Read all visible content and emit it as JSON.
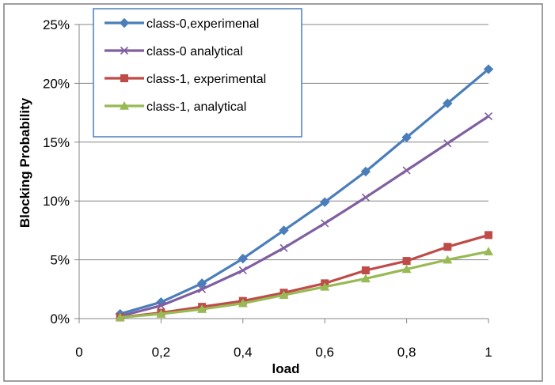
{
  "chart_data": {
    "type": "line",
    "title": "",
    "xlabel": "load",
    "ylabel": "Blocking Probability",
    "xlim": [
      0,
      1
    ],
    "ylim": [
      0,
      0.25
    ],
    "x_ticks": [
      0,
      0.2,
      0.4,
      0.6,
      0.8,
      1
    ],
    "x_tick_labels": [
      "0",
      "0,2",
      "0,4",
      "0,6",
      "0,8",
      "1"
    ],
    "y_ticks": [
      0,
      0.05,
      0.1,
      0.15,
      0.2,
      0.25
    ],
    "y_tick_labels": [
      "0%",
      "5%",
      "10%",
      "15%",
      "20%",
      "25%"
    ],
    "grid": "horizontal",
    "legend_position": "top-left",
    "x": [
      0.1,
      0.2,
      0.3,
      0.4,
      0.5,
      0.6,
      0.7,
      0.8,
      0.9,
      1.0
    ],
    "series": [
      {
        "name": "class-0,experimenal",
        "color": "#4a7ebb",
        "marker": "diamond",
        "values": [
          0.004,
          0.014,
          0.03,
          0.051,
          0.075,
          0.099,
          0.125,
          0.154,
          0.183,
          0.212
        ]
      },
      {
        "name": "class-0 analytical",
        "color": "#7f5fa0",
        "marker": "x",
        "values": [
          0.002,
          0.011,
          0.025,
          0.041,
          0.06,
          0.081,
          0.103,
          0.126,
          0.149,
          0.172
        ]
      },
      {
        "name": "class-1, experimental",
        "color": "#be4b48",
        "marker": "square",
        "values": [
          0.001,
          0.005,
          0.01,
          0.015,
          0.022,
          0.03,
          0.041,
          0.049,
          0.061,
          0.071
        ]
      },
      {
        "name": "class-1, analytical",
        "color": "#98b954",
        "marker": "triangle",
        "values": [
          0.001,
          0.004,
          0.008,
          0.013,
          0.02,
          0.027,
          0.034,
          0.042,
          0.05,
          0.057
        ]
      }
    ]
  }
}
